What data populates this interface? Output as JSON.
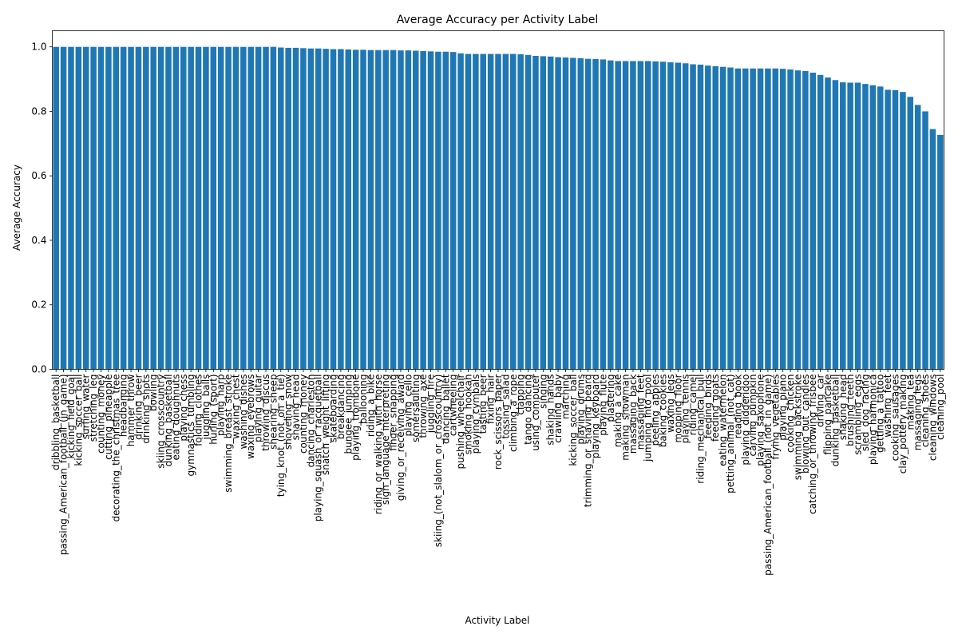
{
  "chart_data": {
    "type": "bar",
    "title": "Average Accuracy per Activity Label",
    "xlabel": "Activity Label",
    "ylabel": "Average Accuracy",
    "ylim": [
      0,
      1.05
    ],
    "yticks": [
      0.0,
      0.2,
      0.4,
      0.6,
      0.8,
      1.0
    ],
    "ytick_labels": [
      "0.0",
      "0.2",
      "0.4",
      "0.6",
      "0.8",
      "1.0"
    ],
    "grid": false,
    "legend": "none",
    "bar_color": "#1f77b4",
    "categories": [
      "dribbling_basketball",
      "passing_American_football_(in_game)",
      "kicking_field_goal",
      "kicking_soccer_ball",
      "surfing_water",
      "stretching_leg",
      "counting_money",
      "cutting_pineapple",
      "decorating_the_christmas_tree",
      "headbanging",
      "hammer_throw",
      "drinking_beer",
      "drinking_shots",
      "bowling",
      "skiing_crosscountry",
      "dunking_basketball",
      "eating_doughnuts",
      "playing_chess",
      "gymnastics_tumbling",
      "folding_clothes",
      "juggling_balls",
      "hurling_(sport)",
      "playing_harp",
      "swimming_breast_stroke",
      "waxing_chest",
      "washing_dishes",
      "waxing_eyebrows",
      "playing_guitar",
      "throwing_discus",
      "shearing_sheep",
      "tying_knot_(not_on_a_tie)",
      "shoveling_snow",
      "shaving_head",
      "counting_money",
      "dancing_charleston",
      "playing_squash_or_racquetball",
      "snatch_weight_lifting",
      "skateboarding",
      "breakdancing",
      "bungee_jumping",
      "playing_trombone",
      "ballooning",
      "riding_a_bike",
      "riding_or_walking_with_horse",
      "sign_language_interpreting",
      "finger_snapping",
      "giving_or_receiving_award",
      "playing_cello",
      "somersaulting",
      "throwing_axe",
      "juggling_fire",
      "skiing_(not_slalom_or_crosscountry)",
      "dancing_ballet",
      "cartwheeling",
      "pushing_wheelchair",
      "smoking_hookah",
      "playing_cymbals",
      "tasting_beer",
      "fixing_hair",
      "rock_scissors_paper",
      "tossing_salad",
      "climbing_a_rope",
      "clapping",
      "tango_dancing",
      "using_computer",
      "singing",
      "shaking_hands",
      "crawling_baby",
      "marching",
      "kicking_soccer_ball",
      "playing_drums",
      "trimming_or_shaving_beard",
      "playing_keyboard",
      "playing_flute",
      "plastering",
      "making_a_cake",
      "making_snowman",
      "massaging_back",
      "massaging_feet",
      "jumping_into_pool",
      "peeling_apples",
      "baking_cookies",
      "waxing_legs",
      "mopping_floor",
      "playing_tennis",
      "riding_camel",
      "riding_mechanical_bull",
      "feeding_birds",
      "feeding_goats",
      "eating_watermelon",
      "petting_animal_(not_cat)",
      "reading_book",
      "playing_didgeridoo",
      "carving_pumpkin",
      "playing_saxophone",
      "passing_American_football_(not_in_game)",
      "frying_vegetables",
      "playing_piano",
      "cooking_chicken",
      "swimming_backstroke",
      "blowing_out_candles",
      "catching_or_throwing_frisbee",
      "driving_car",
      "flipping_pancake",
      "dunking_basketball",
      "shaking_head",
      "brushing_teeth",
      "scrambling_eggs",
      "sled_dog_racing",
      "playing_harmonica",
      "getting_a_tattoo",
      "washing_feet",
      "cooking_sausages",
      "clay_pottery_making",
      "making_tea",
      "massaging_legs",
      "cleaning_shoes",
      "cleaning_windows",
      "cleaning_pool"
    ],
    "values": [
      1.0,
      1.0,
      1.0,
      1.0,
      1.0,
      1.0,
      1.0,
      1.0,
      1.0,
      1.0,
      1.0,
      1.0,
      1.0,
      1.0,
      1.0,
      1.0,
      1.0,
      1.0,
      1.0,
      1.0,
      1.0,
      1.0,
      1.0,
      1.0,
      1.0,
      1.0,
      1.0,
      1.0,
      1.0,
      1.0,
      0.998,
      0.997,
      0.997,
      0.996,
      0.995,
      0.995,
      0.994,
      0.993,
      0.993,
      0.992,
      0.991,
      0.991,
      0.99,
      0.99,
      0.99,
      0.99,
      0.989,
      0.989,
      0.988,
      0.987,
      0.986,
      0.985,
      0.985,
      0.984,
      0.98,
      0.978,
      0.978,
      0.978,
      0.978,
      0.978,
      0.978,
      0.978,
      0.977,
      0.975,
      0.972,
      0.971,
      0.97,
      0.968,
      0.967,
      0.966,
      0.965,
      0.963,
      0.962,
      0.961,
      0.958,
      0.956,
      0.956,
      0.956,
      0.956,
      0.956,
      0.955,
      0.954,
      0.952,
      0.951,
      0.949,
      0.946,
      0.945,
      0.942,
      0.94,
      0.938,
      0.936,
      0.933,
      0.933,
      0.933,
      0.933,
      0.933,
      0.933,
      0.932,
      0.93,
      0.927,
      0.925,
      0.92,
      0.913,
      0.905,
      0.897,
      0.89,
      0.889,
      0.889,
      0.885,
      0.881,
      0.877,
      0.867,
      0.866,
      0.86,
      0.845,
      0.82,
      0.8,
      0.745,
      0.727
    ]
  }
}
